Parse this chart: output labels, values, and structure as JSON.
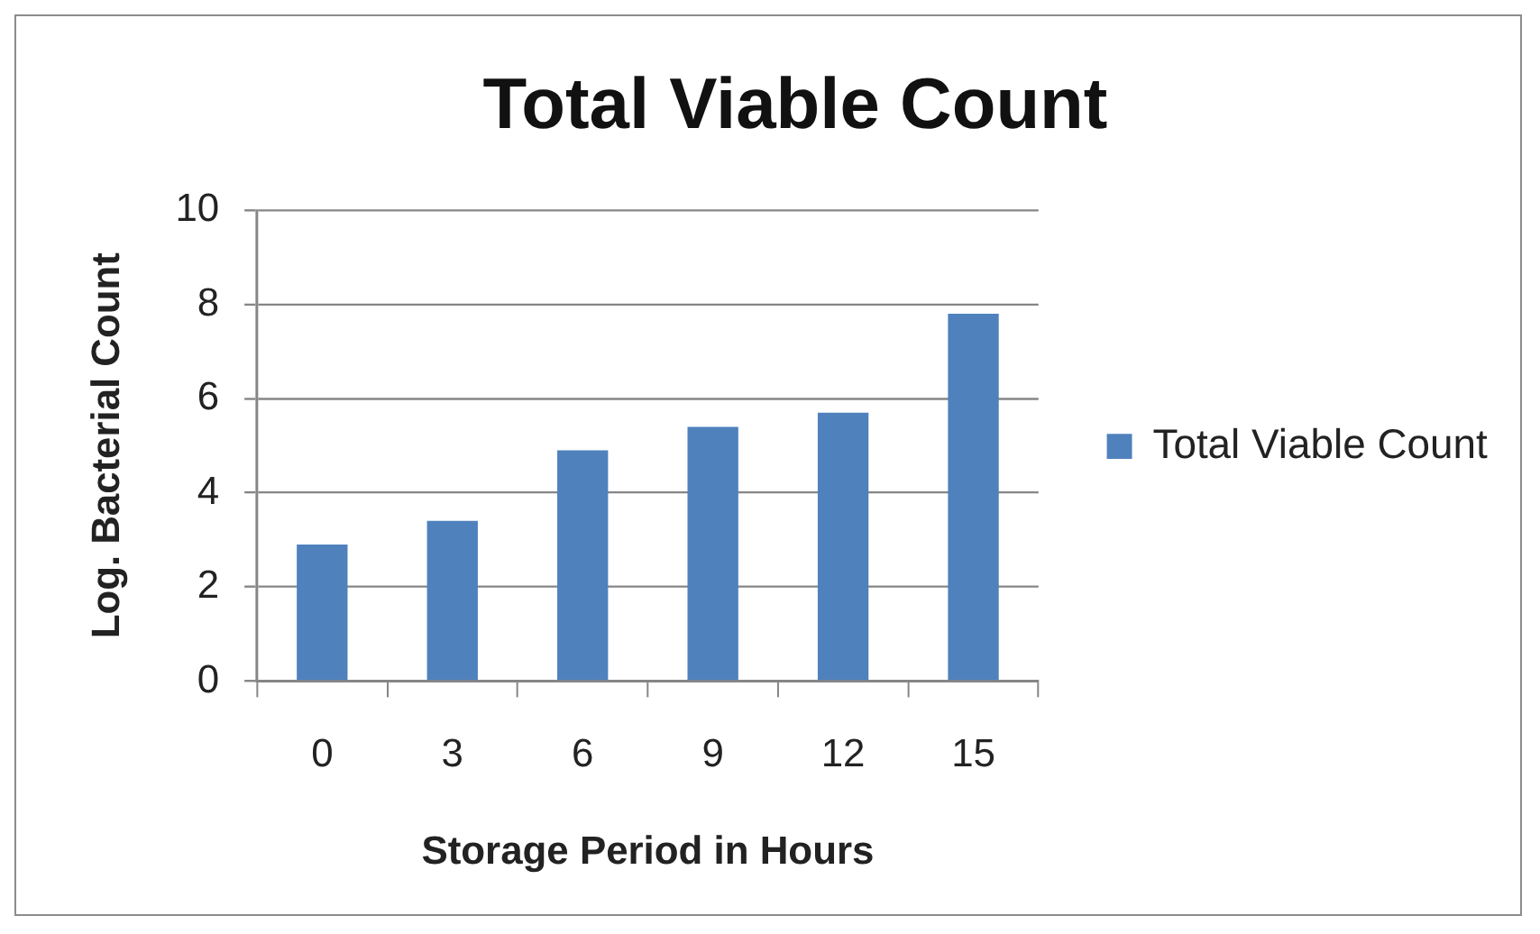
{
  "chart_data": {
    "type": "bar",
    "title": "Total Viable Count",
    "xlabel": "Storage Period in Hours",
    "ylabel": "Log. Bacterial Count",
    "categories": [
      "0",
      "3",
      "6",
      "9",
      "12",
      "15"
    ],
    "series": [
      {
        "name": "Total Viable Count",
        "color": "#4f81bd",
        "values": [
          2.9,
          3.4,
          4.9,
          5.4,
          5.7,
          7.8
        ]
      }
    ],
    "ylim": [
      0,
      10
    ],
    "yticks": [
      0,
      2,
      4,
      6,
      8,
      10
    ],
    "grid": "y",
    "legend": "right"
  }
}
